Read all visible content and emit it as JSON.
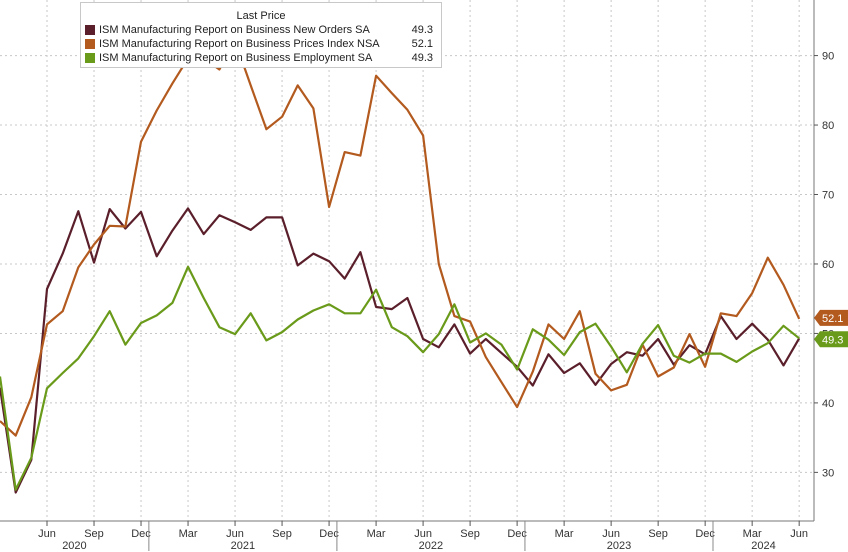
{
  "chart_data": {
    "type": "line",
    "legend_title": "Last Price",
    "legend_position": "top-left",
    "grid": true,
    "y_axis_side": "right",
    "ylim": [
      23,
      98
    ],
    "y_ticks": [
      30,
      40,
      50,
      60,
      70,
      80,
      90
    ],
    "x_month_ticks": [
      "Jun",
      "Sep",
      "Dec",
      "Mar",
      "Jun",
      "Sep",
      "Dec",
      "Mar",
      "Jun",
      "Sep",
      "Dec",
      "Mar",
      "Jun",
      "Sep",
      "Dec",
      "Mar",
      "Jun"
    ],
    "x_year_labels": [
      "2020",
      "2021",
      "2022",
      "2023",
      "2024"
    ],
    "x": [
      "2020-03",
      "2020-04",
      "2020-05",
      "2020-06",
      "2020-07",
      "2020-08",
      "2020-09",
      "2020-10",
      "2020-11",
      "2020-12",
      "2021-01",
      "2021-02",
      "2021-03",
      "2021-04",
      "2021-05",
      "2021-06",
      "2021-07",
      "2021-08",
      "2021-09",
      "2021-10",
      "2021-11",
      "2021-12",
      "2022-01",
      "2022-02",
      "2022-03",
      "2022-04",
      "2022-05",
      "2022-06",
      "2022-07",
      "2022-08",
      "2022-09",
      "2022-10",
      "2022-11",
      "2022-12",
      "2023-01",
      "2023-02",
      "2023-03",
      "2023-04",
      "2023-05",
      "2023-06",
      "2023-07",
      "2023-08",
      "2023-09",
      "2023-10",
      "2023-11",
      "2023-12",
      "2024-01",
      "2024-02",
      "2024-03",
      "2024-04",
      "2024-05",
      "2024-06"
    ],
    "series": [
      {
        "name": "ISM Manufacturing Report on Business New Orders SA",
        "last": "49.3",
        "color": "#5a1f2b",
        "values": [
          42.2,
          27.1,
          31.8,
          56.4,
          61.5,
          67.6,
          60.2,
          67.9,
          65.1,
          67.5,
          61.1,
          64.8,
          68.0,
          64.3,
          67.0,
          66.0,
          64.9,
          66.7,
          66.7,
          59.8,
          61.5,
          60.4,
          57.9,
          61.7,
          53.8,
          53.5,
          55.1,
          49.2,
          48.0,
          51.3,
          47.1,
          49.2,
          47.2,
          45.2,
          42.5,
          47.0,
          44.3,
          45.7,
          42.6,
          45.6,
          47.3,
          46.8,
          49.2,
          45.5,
          48.3,
          47.0,
          52.5,
          49.2,
          51.4,
          49.1,
          45.4,
          49.3
        ]
      },
      {
        "name": "ISM Manufacturing Report on Business Prices Index NSA",
        "last": "52.1",
        "color": "#b35a1f",
        "values": [
          37.4,
          35.3,
          40.8,
          51.3,
          53.2,
          59.5,
          62.8,
          65.5,
          65.4,
          77.6,
          82.1,
          86.0,
          89.6,
          89.6,
          88.0,
          92.1,
          85.7,
          79.4,
          81.2,
          85.7,
          82.4,
          68.2,
          76.1,
          75.6,
          87.1,
          84.6,
          82.2,
          78.5,
          60.0,
          52.5,
          51.7,
          46.6,
          43.0,
          39.4,
          44.5,
          51.3,
          49.2,
          53.2,
          44.2,
          41.8,
          42.6,
          48.4,
          43.8,
          45.1,
          49.9,
          45.2,
          52.9,
          52.5,
          55.8,
          60.9,
          57.0,
          52.1
        ]
      },
      {
        "name": "ISM Manufacturing Report on Business Employment SA",
        "last": "49.3",
        "color": "#6a9a1a",
        "values": [
          43.8,
          27.5,
          32.1,
          42.1,
          44.3,
          46.4,
          49.6,
          53.2,
          48.4,
          51.5,
          52.6,
          54.4,
          59.6,
          55.1,
          50.9,
          49.9,
          52.9,
          49.0,
          50.2,
          52.0,
          53.3,
          54.2,
          52.9,
          52.9,
          56.3,
          50.9,
          49.6,
          47.3,
          49.9,
          54.2,
          48.7,
          50.0,
          48.4,
          44.8,
          50.6,
          49.1,
          46.9,
          50.2,
          51.4,
          48.1,
          44.4,
          48.5,
          51.2,
          46.8,
          45.8,
          47.1,
          47.1,
          45.9,
          47.4,
          48.6,
          51.1,
          49.3
        ]
      }
    ]
  }
}
